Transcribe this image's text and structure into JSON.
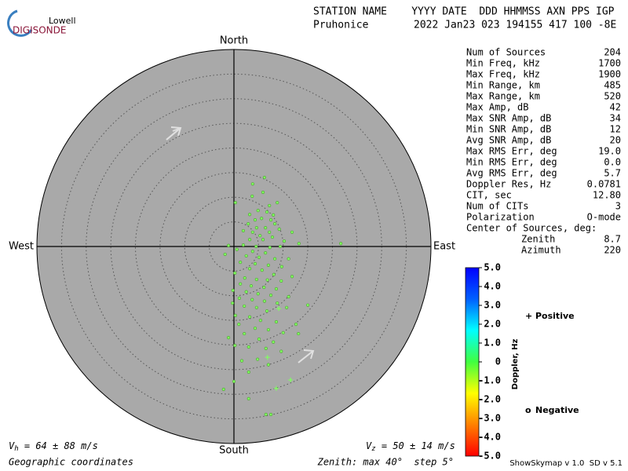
{
  "chart_data": {
    "type": "polar_scatter",
    "logo": {
      "top": "Lowell",
      "bottom": "DIGISONDE"
    },
    "header": {
      "line1": "STATION NAME    YYYY DATE  DDD HHMMSS AXN PPS IGP",
      "station": "Pruhonice",
      "line2": "2022 Jan23 023 194155 417 100 -8E"
    },
    "directions": {
      "north": "North",
      "south": "South",
      "east": "East",
      "west": "West"
    },
    "rlim": [
      0,
      40
    ],
    "rticks": [
      5,
      10,
      15,
      20,
      25,
      30,
      35,
      40
    ],
    "plot_color": "#a9a9a9",
    "series": [
      {
        "name": "Negative",
        "symbol": "o",
        "marker": "circle",
        "color": "#80ff60",
        "legend_color": "#dd0000",
        "x": [
          6.2,
          3.8,
          5.9,
          3.7,
          8.8,
          0.3,
          7.2,
          4.9,
          3.2,
          6.7,
          8.0,
          4.3,
          5.6,
          7.5,
          8.3,
          2.9,
          4.6,
          6.4,
          9.2,
          1.9,
          3.8,
          7.2,
          11.8,
          5.3,
          7.8,
          3.2,
          5.9,
          10.2,
          13.2,
          21.7,
          1.9,
          4.5,
          7.3,
          9.4,
          0.6,
          3.8,
          6.4,
          -1.8,
          2.5,
          5.1,
          8.3,
          11.1,
          1.3,
          4.3,
          7.0,
          9.7,
          3.2,
          5.7,
          0.2,
          8.1,
          11.8,
          2.2,
          4.6,
          6.8,
          9.6,
          1.3,
          3.5,
          6.1,
          8.6,
          -0.2,
          2.5,
          4.9,
          7.5,
          11.1,
          1.1,
          3.7,
          6.2,
          -0.3,
          8.8,
          15.0,
          2.1,
          4.6,
          10.7,
          6.7,
          0.3,
          3.2,
          5.4,
          8.6,
          1.0,
          12.6,
          4.3,
          7.0,
          10.0,
          2.1,
          13.1,
          -1.1,
          5.1,
          8.0,
          0.2,
          3.0,
          6.5,
          9.6,
          4.8,
          1.6,
          7.0,
          3.0,
          -2.1,
          0,
          3.0,
          6.5,
          7.5,
          -1.1
        ],
        "y": [
          14.0,
          12.7,
          11.0,
          10.2,
          8.9,
          8.9,
          8.3,
          7.3,
          6.5,
          7.0,
          6.4,
          5.4,
          5.7,
          5.4,
          4.6,
          4.6,
          3.8,
          3.8,
          3.5,
          3.2,
          2.9,
          2.9,
          2.9,
          2.2,
          1.9,
          1.4,
          1.4,
          1.1,
          0.6,
          0.6,
          0.3,
          0,
          -0.2,
          0,
          -0.6,
          -1.0,
          -1.3,
          -1.6,
          -1.9,
          -2.2,
          -2.5,
          -2.5,
          -3.2,
          -3.5,
          -3.8,
          -4.1,
          -4.5,
          -4.8,
          -5.4,
          -5.7,
          -6.1,
          -6.4,
          -6.7,
          -6.8,
          -7.0,
          -7.6,
          -8.0,
          -8.3,
          -8.6,
          -8.9,
          -9.2,
          -9.6,
          -9.9,
          -10.2,
          -10.5,
          -10.8,
          -11.1,
          -11.5,
          -11.5,
          -11.9,
          -12.1,
          -12.4,
          -12.4,
          -13.1,
          -14.0,
          -14.3,
          -15.0,
          -15.3,
          -15.8,
          -15.8,
          -16.6,
          -16.9,
          -17.5,
          -17.7,
          -17.7,
          -18.5,
          -18.8,
          -19.4,
          -20.1,
          -20.4,
          -20.7,
          -21.3,
          -22.9,
          -23.2,
          -24.0,
          -25.5,
          -29.0,
          -27.4,
          -30.9,
          -34.1,
          -34.1,
          0.2
        ]
      },
      {
        "name": "Positive",
        "symbol": "+",
        "marker": "plus",
        "color": "#80ff60",
        "legend_color": "#0000cc",
        "x": [
          9.1,
          6.8,
          11.5,
          8.6
        ],
        "y": [
          -12.6,
          -22.5,
          -27.1,
          -28.8
        ]
      }
    ],
    "stats": [
      {
        "label": "Num of Sources",
        "value": "204"
      },
      {
        "label": "Min Freq, kHz",
        "value": "1700"
      },
      {
        "label": "Max Freq, kHz",
        "value": "1900"
      },
      {
        "label": "Min Range, km",
        "value": "485"
      },
      {
        "label": "Max Range, km",
        "value": "520"
      },
      {
        "label": "Max Amp, dB",
        "value": "42"
      },
      {
        "label": "Max SNR Amp, dB",
        "value": "34"
      },
      {
        "label": "Min SNR Amp, dB",
        "value": "12"
      },
      {
        "label": "Avg SNR Amp, dB",
        "value": "20"
      },
      {
        "label": "Max RMS Err, deg",
        "value": "19.0"
      },
      {
        "label": "Min RMS Err, deg",
        "value": "0.0"
      },
      {
        "label": "Avg RMS Err, deg",
        "value": "5.7"
      },
      {
        "label": "Doppler Res, Hz",
        "value": "0.0781"
      },
      {
        "label": "CIT, sec",
        "value": "12.80"
      },
      {
        "label": "Num of CITs",
        "value": "3"
      },
      {
        "label": "Polarization",
        "value": "O-mode"
      }
    ],
    "center": {
      "title": "Center of Sources, deg:",
      "rows": [
        {
          "label": "Zenith",
          "value": "8.7"
        },
        {
          "label": "Azimuth",
          "value": "220"
        }
      ]
    },
    "colorbar": {
      "label": "Doppler, Hz",
      "clim": [
        -5,
        5
      ],
      "colors": [
        "#ff0000",
        "#ff8000",
        "#ffff00",
        "#40ff40",
        "#00ffff",
        "#0060ff",
        "#0000ff"
      ],
      "ticks": [
        {
          "value": 5,
          "label": "5.0"
        },
        {
          "value": 4,
          "label": "4.0"
        },
        {
          "value": 3,
          "label": "3.0"
        },
        {
          "value": 2,
          "label": "2.0"
        },
        {
          "value": 1,
          "label": "1.0"
        },
        0,
        {
          "value": -1,
          "label": "-1.0"
        },
        {
          "value": -2,
          "label": "-2.0"
        },
        {
          "value": -3,
          "label": "-3.0"
        },
        {
          "value": -4,
          "label": "-4.0"
        },
        {
          "value": -5,
          "label": "-5.0"
        }
      ]
    },
    "velocity": {
      "vh_symbol": "V",
      "vh_sub": "h",
      "vh_text": " = 64 ± 88 m/s",
      "vz_symbol": "V",
      "vz_sub": "z",
      "vz_text": " = 50 ± 14 m/s"
    },
    "footer": {
      "coords": "Geographic coordinates",
      "zenith": "Zenith: max 40°  step 5°",
      "version": "ShowSkymap v 1.0  SD v 5.1"
    }
  }
}
